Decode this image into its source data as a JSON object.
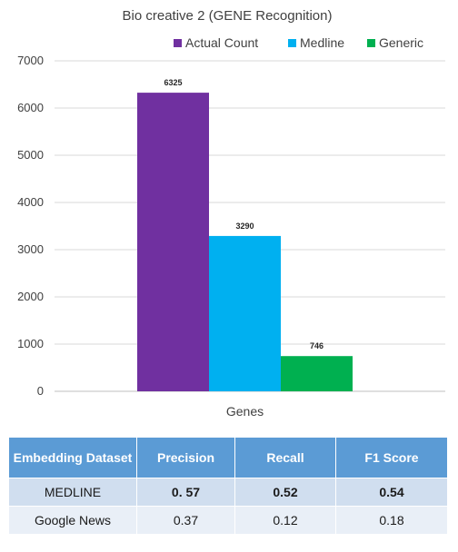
{
  "chart_data": {
    "type": "bar",
    "title": "Bio creative 2 (GENE Recognition)",
    "categories": [
      "Genes"
    ],
    "series": [
      {
        "name": "Actual Count",
        "values": [
          6325
        ],
        "color": "#7030a0"
      },
      {
        "name": "Medline",
        "values": [
          3290
        ],
        "color": "#00b0f0"
      },
      {
        "name": "Generic",
        "values": [
          746
        ],
        "color": "#00b050"
      }
    ],
    "ylim": [
      0,
      7000
    ],
    "yticks": [
      0,
      1000,
      2000,
      3000,
      4000,
      5000,
      6000,
      7000
    ],
    "grid": true,
    "legend": "top-right"
  },
  "table": {
    "headers": [
      "Embedding Dataset",
      "Precision",
      "Recall",
      "F1 Score"
    ],
    "rows": [
      [
        "MEDLINE",
        "0. 57",
        "0.52",
        "0.54"
      ],
      [
        "Google News",
        "0.37",
        "0.12",
        "0.18"
      ]
    ]
  }
}
